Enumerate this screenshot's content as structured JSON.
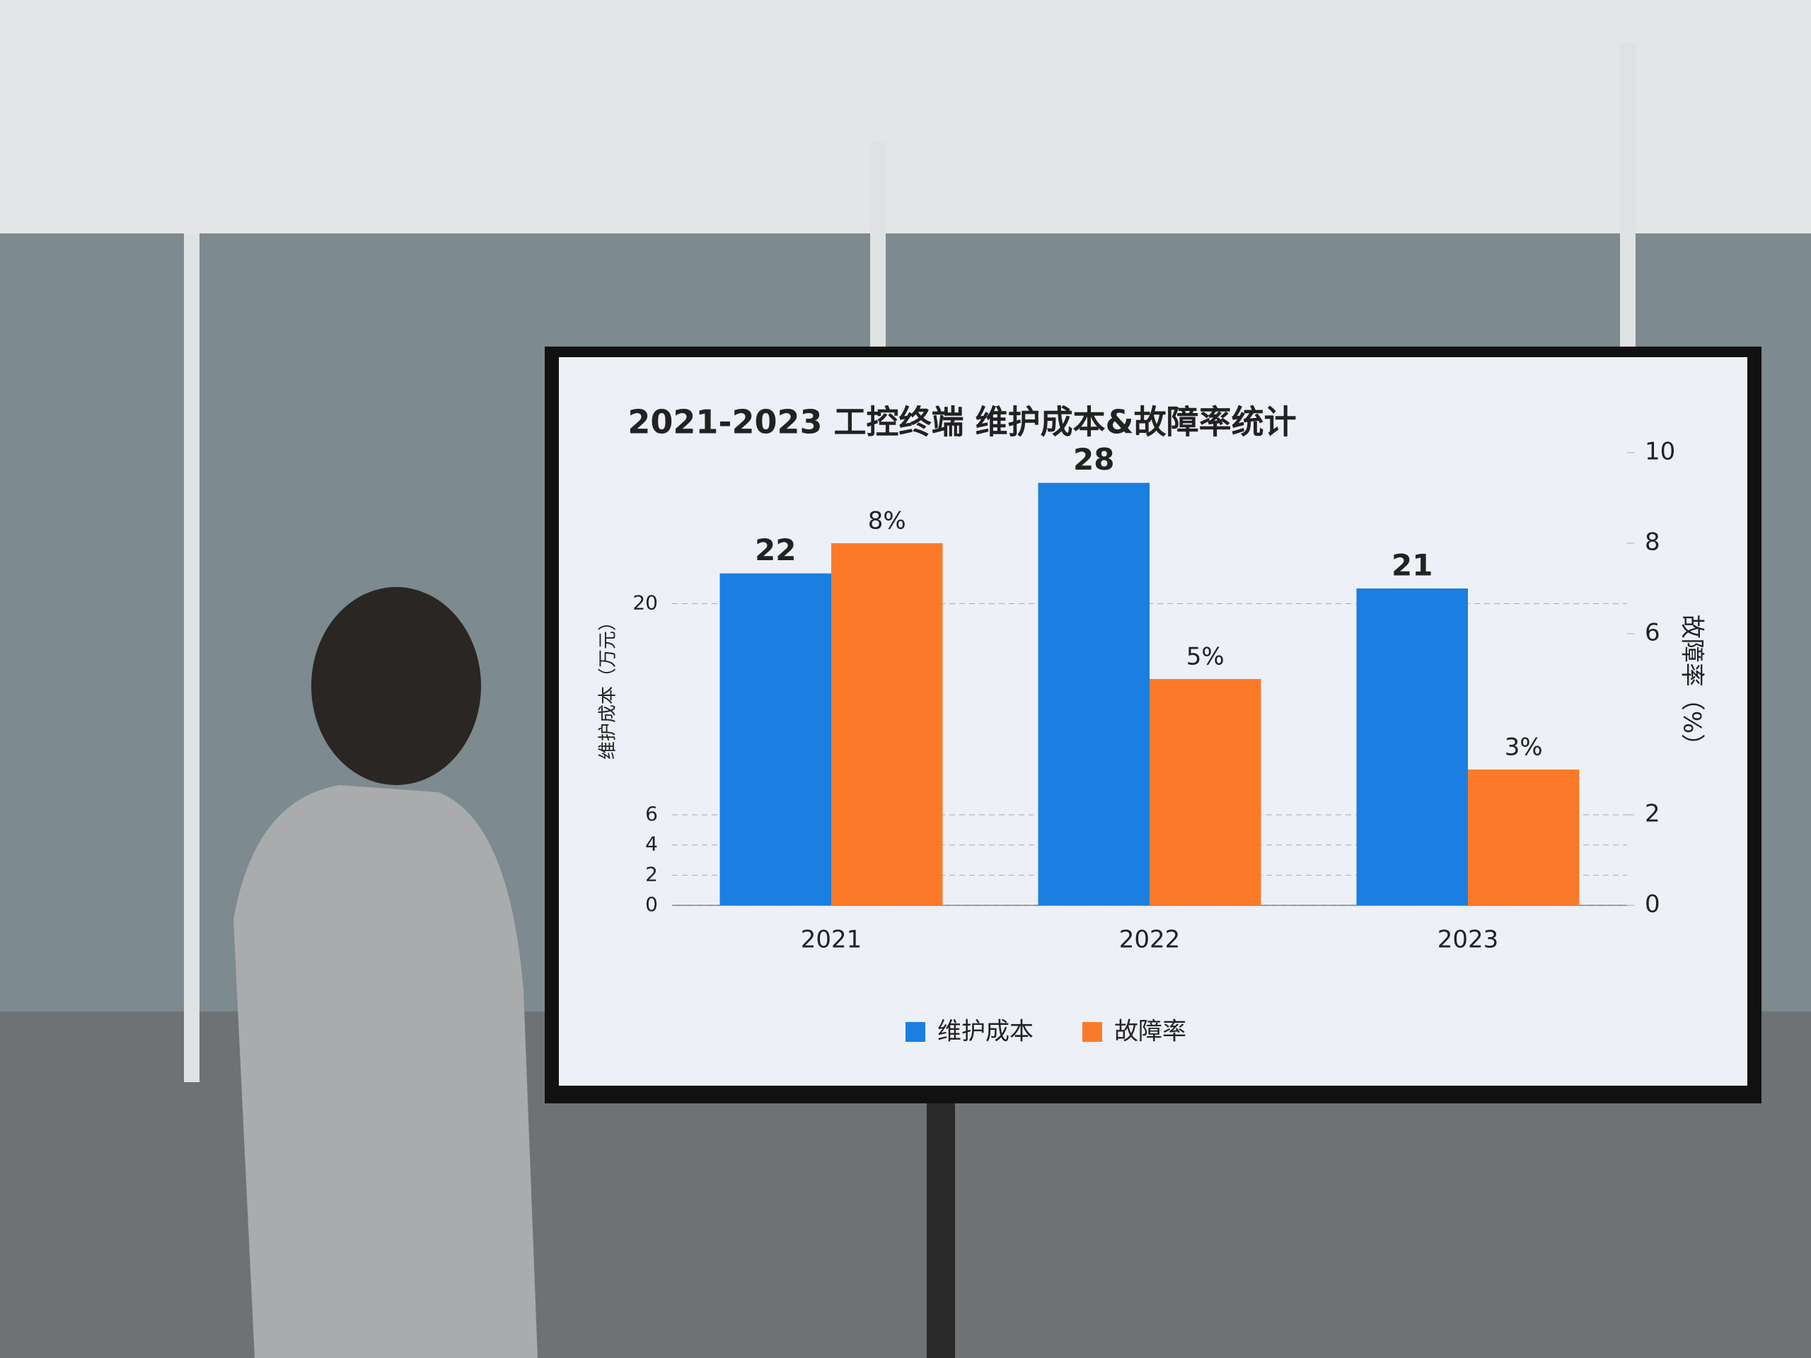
{
  "chart_data": {
    "type": "bar",
    "title": "2021-2023 工控终端 维护成本&故障率统计",
    "categories": [
      "2021",
      "2022",
      "2023"
    ],
    "series": [
      {
        "name": "维护成本",
        "color": "#1a7fe0",
        "values": [
          22,
          28,
          21
        ]
      },
      {
        "name": "故障率",
        "color": "#fb7a2a",
        "values": [
          8,
          5,
          3
        ],
        "value_labels": [
          "8%",
          "5%",
          "3%"
        ],
        "axis": "y2"
      }
    ],
    "ylabel": "维护成本（万元）",
    "y2label": "故障率（%）",
    "ylim": [
      0,
      30
    ],
    "yticks": [
      0,
      2,
      4,
      6,
      20
    ],
    "y2lim": [
      0,
      10
    ],
    "y2ticks": [
      0,
      2,
      6,
      8,
      10
    ],
    "grid": true,
    "legend": "bottom"
  }
}
